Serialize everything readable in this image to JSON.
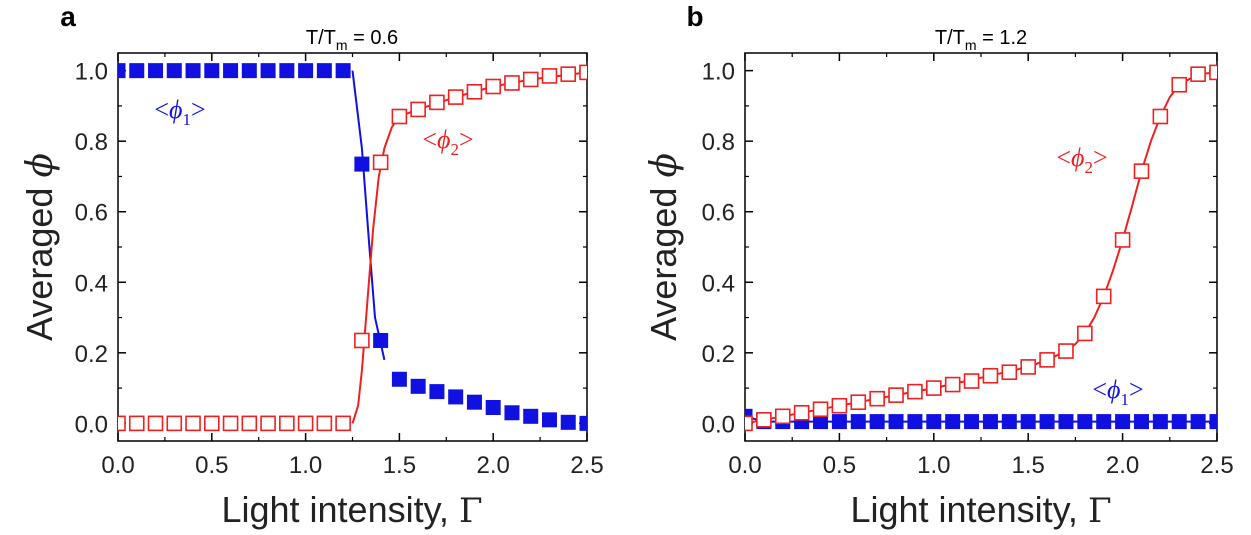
{
  "chart_data": [
    {
      "type": "scatter",
      "panel_label": "a",
      "title_main": "T/T",
      "title_sub": "m",
      "title_value": " = 0.6",
      "xlabel_text": "Light intensity, ",
      "xlabel_symbol": "Γ",
      "ylabel_text": "Averaged ",
      "ylabel_symbol": "ϕ",
      "xlim": [
        0,
        2.5
      ],
      "ylim": [
        -0.05,
        1.05
      ],
      "xticks": [
        "0.0",
        "0.5",
        "1.0",
        "1.5",
        "2.0",
        "2.5"
      ],
      "yticks": [
        "0.0",
        "0.2",
        "0.4",
        "0.6",
        "0.8",
        "1.0"
      ],
      "series": [
        {
          "label_open": "<",
          "label_symbol": "ϕ",
          "label_sub": "1",
          "label_close": ">",
          "color": "#1010e0",
          "marker": "filled-square",
          "x": [
            0,
            0.1,
            0.2,
            0.3,
            0.4,
            0.5,
            0.6,
            0.7,
            0.8,
            0.9,
            1.0,
            1.1,
            1.2,
            1.3,
            1.4,
            1.5,
            1.6,
            1.7,
            1.8,
            1.9,
            2.0,
            2.1,
            2.2,
            2.3,
            2.4,
            2.5
          ],
          "y": [
            1.0,
            1.0,
            1.0,
            1.0,
            1.0,
            1.0,
            1.0,
            1.0,
            1.0,
            1.0,
            1.0,
            1.0,
            1.0,
            0.735,
            0.235,
            0.125,
            0.105,
            0.09,
            0.075,
            0.06,
            0.045,
            0.03,
            0.02,
            0.01,
            0.003,
            0.0
          ],
          "curve_x": [
            1.25,
            1.3,
            1.34,
            1.37,
            1.42
          ],
          "curve_y": [
            1.0,
            0.78,
            0.5,
            0.3,
            0.18
          ]
        },
        {
          "label_open": "<",
          "label_symbol": "ϕ",
          "label_sub": "2",
          "label_close": ">",
          "color": "#ee2020",
          "marker": "open-square",
          "x": [
            0,
            0.1,
            0.2,
            0.3,
            0.4,
            0.5,
            0.6,
            0.7,
            0.8,
            0.9,
            1.0,
            1.1,
            1.2,
            1.3,
            1.4,
            1.5,
            1.6,
            1.7,
            1.8,
            1.9,
            2.0,
            2.1,
            2.2,
            2.3,
            2.4,
            2.5
          ],
          "y": [
            0.0,
            0.0,
            0.0,
            0.0,
            0.0,
            0.0,
            0.0,
            0.0,
            0.0,
            0.0,
            0.0,
            0.0,
            0.0,
            0.235,
            0.74,
            0.87,
            0.89,
            0.91,
            0.925,
            0.94,
            0.955,
            0.965,
            0.975,
            0.985,
            0.99,
            0.995
          ],
          "curve_x": [
            1.25,
            1.28,
            1.3,
            1.33,
            1.36,
            1.39,
            1.42,
            1.46,
            1.5,
            1.6,
            1.8,
            2.0,
            2.2,
            2.5
          ],
          "curve_y": [
            0.0,
            0.05,
            0.15,
            0.35,
            0.55,
            0.7,
            0.78,
            0.84,
            0.87,
            0.89,
            0.925,
            0.955,
            0.975,
            0.995
          ]
        }
      ]
    },
    {
      "type": "scatter",
      "panel_label": "b",
      "title_main": "T/T",
      "title_sub": "m",
      "title_value": " = 1.2",
      "xlabel_text": "Light intensity, ",
      "xlabel_symbol": "Γ",
      "ylabel_text": "Averaged ",
      "ylabel_symbol": "ϕ",
      "xlim": [
        0,
        2.5
      ],
      "ylim": [
        -0.05,
        1.05
      ],
      "xticks": [
        "0.0",
        "0.5",
        "1.0",
        "1.5",
        "2.0",
        "2.5"
      ],
      "yticks": [
        "0.0",
        "0.2",
        "0.4",
        "0.6",
        "0.8",
        "1.0"
      ],
      "series": [
        {
          "label_open": "<",
          "label_symbol": "ϕ",
          "label_sub": "1",
          "label_close": ">",
          "color": "#1010e0",
          "marker": "filled-square",
          "x": [
            0,
            0.1,
            0.2,
            0.3,
            0.4,
            0.5,
            0.6,
            0.7,
            0.8,
            0.9,
            1.0,
            1.1,
            1.2,
            1.3,
            1.4,
            1.5,
            1.6,
            1.7,
            1.8,
            1.9,
            2.0,
            2.1,
            2.2,
            2.3,
            2.4,
            2.5
          ],
          "y": [
            0.02,
            0.005,
            0.005,
            0.005,
            0.005,
            0.005,
            0.005,
            0.005,
            0.005,
            0.005,
            0.005,
            0.005,
            0.005,
            0.005,
            0.005,
            0.005,
            0.005,
            0.005,
            0.005,
            0.005,
            0.005,
            0.005,
            0.005,
            0.005,
            0.005,
            0.005
          ],
          "curve_x": [
            0,
            0.1,
            2.5
          ],
          "curve_y": [
            0.02,
            0.005,
            0.005
          ]
        },
        {
          "label_open": "<",
          "label_symbol": "ϕ",
          "label_sub": "2",
          "label_close": ">",
          "color": "#ee2020",
          "marker": "open-square",
          "x": [
            0,
            0.1,
            0.2,
            0.3,
            0.4,
            0.5,
            0.6,
            0.7,
            0.8,
            0.9,
            1.0,
            1.1,
            1.2,
            1.3,
            1.4,
            1.5,
            1.6,
            1.7,
            1.8,
            1.9,
            2.0,
            2.1,
            2.2,
            2.3,
            2.4,
            2.5
          ],
          "y": [
            0.0,
            0.01,
            0.02,
            0.03,
            0.04,
            0.05,
            0.06,
            0.07,
            0.08,
            0.09,
            0.1,
            0.11,
            0.12,
            0.135,
            0.145,
            0.16,
            0.18,
            0.205,
            0.255,
            0.36,
            0.52,
            0.715,
            0.87,
            0.96,
            0.99,
            0.995
          ],
          "curve_x": [
            0,
            0.5,
            1.0,
            1.3,
            1.5,
            1.6,
            1.7,
            1.75,
            1.8,
            1.85,
            1.9,
            1.95,
            2.0,
            2.05,
            2.1,
            2.15,
            2.2,
            2.25,
            2.3,
            2.4,
            2.5
          ],
          "curve_y": [
            0.0,
            0.05,
            0.1,
            0.135,
            0.16,
            0.18,
            0.205,
            0.225,
            0.255,
            0.3,
            0.36,
            0.435,
            0.52,
            0.615,
            0.715,
            0.8,
            0.87,
            0.925,
            0.96,
            0.99,
            0.995
          ]
        }
      ]
    }
  ]
}
